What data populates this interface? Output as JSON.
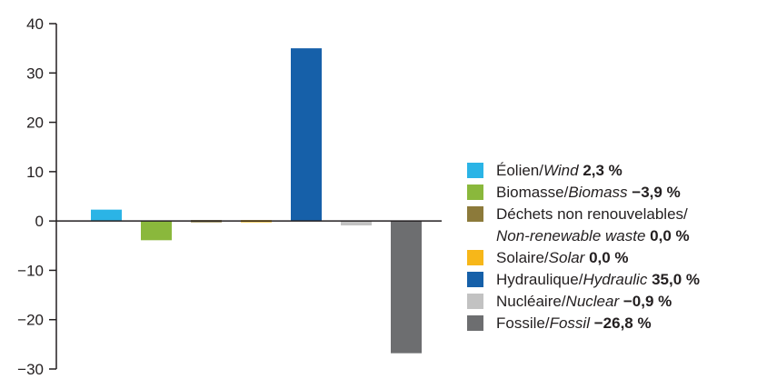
{
  "chart_data": {
    "type": "bar",
    "ylim": [
      -30,
      40
    ],
    "yticks": [
      40,
      30,
      20,
      10,
      0,
      -10,
      -20,
      -30
    ],
    "ytick_labels": [
      "40",
      "30",
      "20",
      "10",
      "0",
      "−10",
      "−20",
      "−30"
    ],
    "legend_position": "right",
    "series": [
      {
        "key": "wind",
        "label_fr": "Éolien",
        "sep": "/",
        "label_en": "Wind",
        "value": 2.3,
        "value_label": "2,3 %",
        "color": "#2bb4e6"
      },
      {
        "key": "biomass",
        "label_fr": "Biomasse",
        "sep": "/",
        "label_en": "Biomass",
        "value": -3.9,
        "value_label": "−3,9 %",
        "color": "#8ab83c"
      },
      {
        "key": "waste",
        "label_fr": "Déchets non renouvelables",
        "sep": "/",
        "label_en": "Non-renewable waste",
        "value": 0.0,
        "value_label": "0,0 %",
        "color": "#8c7a3a"
      },
      {
        "key": "solar",
        "label_fr": "Solaire",
        "sep": "/",
        "label_en": "Solar",
        "value": 0.0,
        "value_label": "0,0 %",
        "color": "#f7b719"
      },
      {
        "key": "hydro",
        "label_fr": "Hydraulique",
        "sep": "/",
        "label_en": "Hydraulic",
        "value": 35.0,
        "value_label": "35,0 %",
        "color": "#1660a9"
      },
      {
        "key": "nuclear",
        "label_fr": "Nucléaire",
        "sep": "/",
        "label_en": "Nuclear",
        "value": -0.9,
        "value_label": "−0,9 %",
        "color": "#c2c2c2"
      },
      {
        "key": "fossil",
        "label_fr": "Fossile",
        "sep": "/",
        "label_en": "Fossil",
        "value": -26.8,
        "value_label": "−26,8 %",
        "color": "#6d6e70"
      }
    ]
  }
}
